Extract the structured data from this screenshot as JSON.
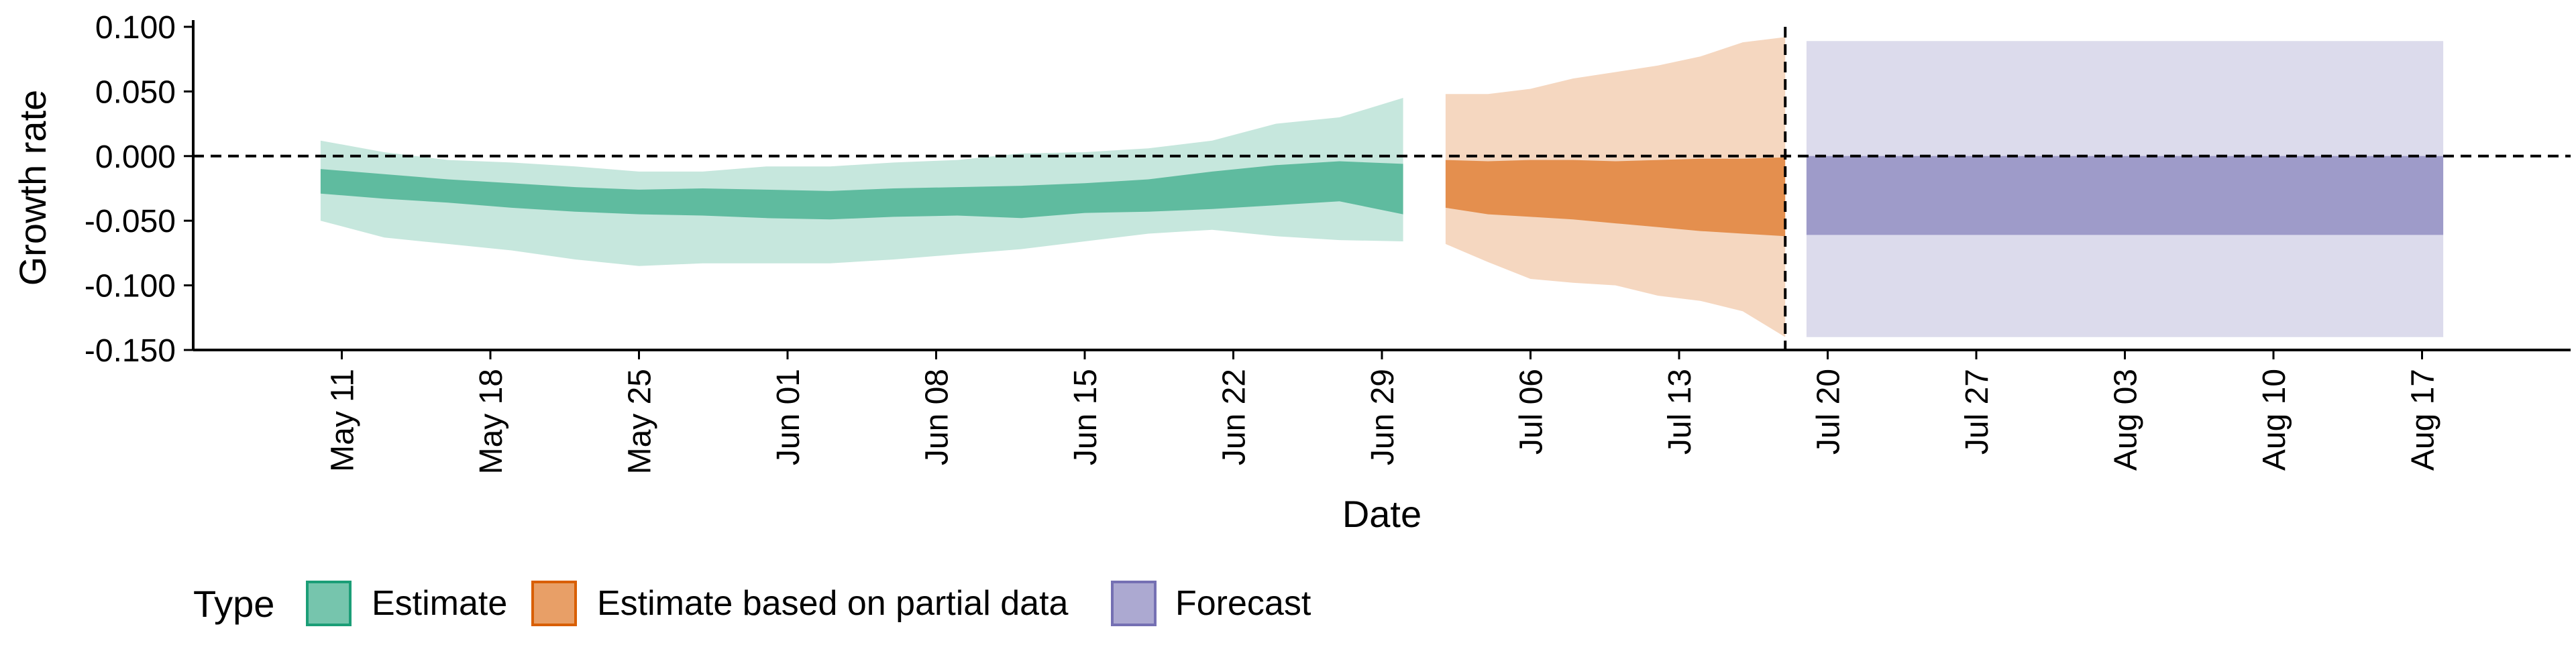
{
  "chart_data": {
    "type": "area",
    "xlabel": "Date",
    "ylabel": "Growth rate",
    "x_type": "date",
    "xlim": [
      "2020-05-04",
      "2020-08-24"
    ],
    "ylim": [
      -0.15,
      0.1
    ],
    "y_ticks": [
      -0.15,
      -0.1,
      -0.05,
      0.0,
      0.05,
      0.1
    ],
    "y_tick_labels": [
      "-0.150",
      "-0.100",
      "-0.050",
      "0.000",
      "0.050",
      "0.100"
    ],
    "x_ticks": [
      "2020-05-11",
      "2020-05-18",
      "2020-05-25",
      "2020-06-01",
      "2020-06-08",
      "2020-06-15",
      "2020-06-22",
      "2020-06-29",
      "2020-07-06",
      "2020-07-13",
      "2020-07-20",
      "2020-07-27",
      "2020-08-03",
      "2020-08-10",
      "2020-08-17"
    ],
    "x_tick_labels": [
      "May 11",
      "May 18",
      "May 25",
      "Jun 01",
      "Jun 08",
      "Jun 15",
      "Jun 22",
      "Jun 29",
      "Jul 06",
      "Jul 13",
      "Jul 20",
      "Jul 27",
      "Aug 03",
      "Aug 10",
      "Aug 17"
    ],
    "hline_y": 0.0,
    "vline_x": "2020-07-18",
    "grid": false,
    "legend": {
      "title": "Type",
      "position": "bottom-left"
    },
    "series": [
      {
        "name": "Estimate",
        "color": "#1b9e77",
        "x": [
          "2020-05-10",
          "2020-05-13",
          "2020-05-16",
          "2020-05-19",
          "2020-05-22",
          "2020-05-25",
          "2020-05-28",
          "2020-05-31",
          "2020-06-03",
          "2020-06-06",
          "2020-06-09",
          "2020-06-12",
          "2020-06-15",
          "2020-06-18",
          "2020-06-21",
          "2020-06-24",
          "2020-06-27",
          "2020-06-30"
        ],
        "outer_upper": [
          0.012,
          0.003,
          -0.003,
          -0.005,
          -0.008,
          -0.012,
          -0.012,
          -0.008,
          -0.008,
          -0.005,
          -0.003,
          0.002,
          0.003,
          0.006,
          0.012,
          0.025,
          0.03,
          0.045
        ],
        "outer_lower": [
          -0.05,
          -0.063,
          -0.068,
          -0.073,
          -0.08,
          -0.085,
          -0.083,
          -0.083,
          -0.083,
          -0.08,
          -0.076,
          -0.072,
          -0.066,
          -0.06,
          -0.057,
          -0.062,
          -0.065,
          -0.066
        ],
        "inner_upper": [
          -0.01,
          -0.014,
          -0.018,
          -0.021,
          -0.024,
          -0.026,
          -0.025,
          -0.026,
          -0.027,
          -0.025,
          -0.024,
          -0.023,
          -0.021,
          -0.018,
          -0.012,
          -0.007,
          -0.004,
          -0.006
        ],
        "inner_lower": [
          -0.029,
          -0.033,
          -0.036,
          -0.04,
          -0.043,
          -0.045,
          -0.046,
          -0.048,
          -0.049,
          -0.047,
          -0.046,
          -0.048,
          -0.044,
          -0.043,
          -0.041,
          -0.038,
          -0.035,
          -0.045
        ]
      },
      {
        "name": "Estimate based on partial data",
        "color": "#d95f02",
        "x": [
          "2020-07-02",
          "2020-07-04",
          "2020-07-06",
          "2020-07-08",
          "2020-07-10",
          "2020-07-12",
          "2020-07-14",
          "2020-07-16",
          "2020-07-18"
        ],
        "outer_upper": [
          0.048,
          0.048,
          0.052,
          0.06,
          0.065,
          0.07,
          0.077,
          0.088,
          0.092
        ],
        "outer_lower": [
          -0.068,
          -0.082,
          -0.095,
          -0.098,
          -0.1,
          -0.108,
          -0.112,
          -0.12,
          -0.14
        ],
        "inner_upper": [
          -0.003,
          -0.004,
          -0.003,
          -0.003,
          -0.004,
          -0.003,
          -0.002,
          -0.002,
          -0.001
        ],
        "inner_lower": [
          -0.04,
          -0.045,
          -0.047,
          -0.049,
          -0.052,
          -0.055,
          -0.058,
          -0.06,
          -0.062
        ]
      },
      {
        "name": "Forecast",
        "color": "#7570b3",
        "x": [
          "2020-07-19",
          "2020-08-18"
        ],
        "outer_upper": [
          0.089,
          0.089
        ],
        "outer_lower": [
          -0.14,
          -0.14
        ],
        "inner_upper": [
          0.0,
          0.0
        ],
        "inner_lower": [
          -0.061,
          -0.061
        ]
      }
    ]
  }
}
